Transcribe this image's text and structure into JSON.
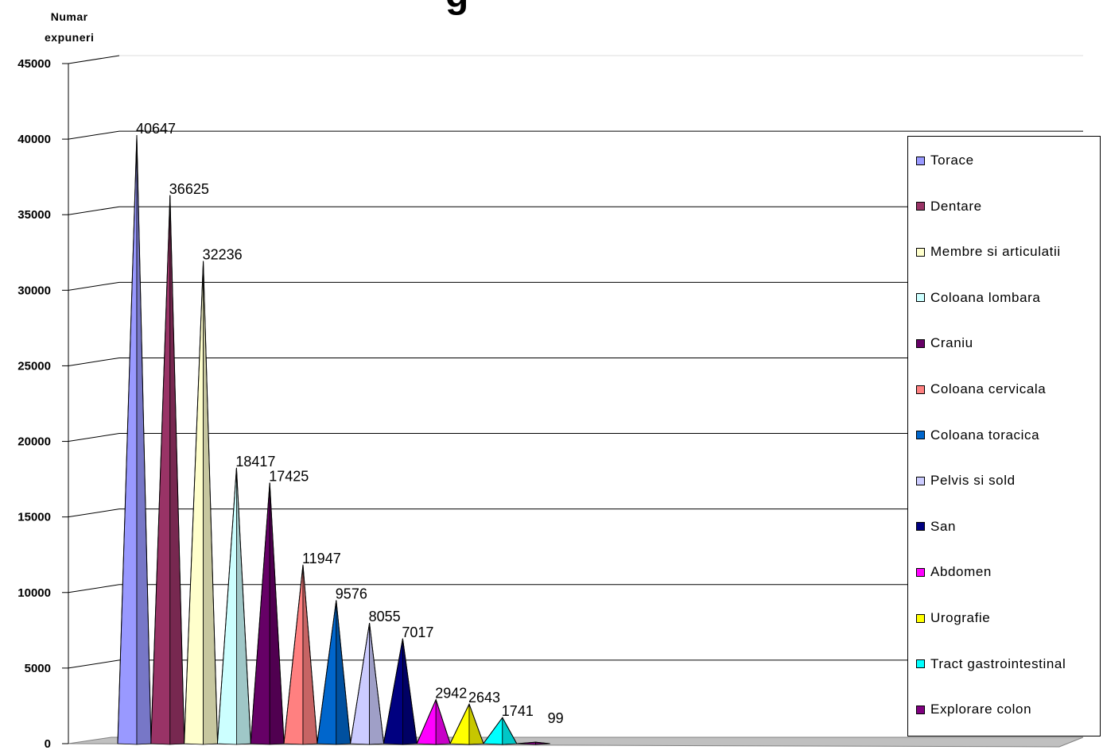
{
  "chart_data": {
    "type": "bar",
    "style": "3d-cone",
    "title": "g",
    "ylabel": "Numar expuneri",
    "ylabel_lines": [
      "Numar",
      "expuneri"
    ],
    "ylim": [
      0,
      45000
    ],
    "yticks": [
      0,
      5000,
      10000,
      15000,
      20000,
      25000,
      30000,
      35000,
      40000,
      45000
    ],
    "grid": true,
    "legend_position": "right",
    "series": [
      {
        "name": "Torace",
        "value": 40647,
        "color": "#9999ff"
      },
      {
        "name": "Dentare",
        "value": 36625,
        "color": "#993366"
      },
      {
        "name": "Membre si articulatii",
        "value": 32236,
        "color": "#ffffcc"
      },
      {
        "name": "Coloana lombara",
        "value": 18417,
        "color": "#ccffff"
      },
      {
        "name": "Craniu",
        "value": 17425,
        "color": "#660066"
      },
      {
        "name": "Coloana cervicala",
        "value": 11947,
        "color": "#ff8080"
      },
      {
        "name": "Coloana toracica",
        "value": 9576,
        "color": "#0066cc"
      },
      {
        "name": "Pelvis si sold",
        "value": 8055,
        "color": "#ccccff"
      },
      {
        "name": "San",
        "value": 7017,
        "color": "#000080"
      },
      {
        "name": "Abdomen",
        "value": 2942,
        "color": "#ff00ff"
      },
      {
        "name": "Urografie",
        "value": 2643,
        "color": "#ffff00"
      },
      {
        "name": "Tract gastrointestinal",
        "value": 1741,
        "color": "#00ffff"
      },
      {
        "name": "Explorare colon",
        "value": 99,
        "color": "#800080"
      }
    ]
  }
}
